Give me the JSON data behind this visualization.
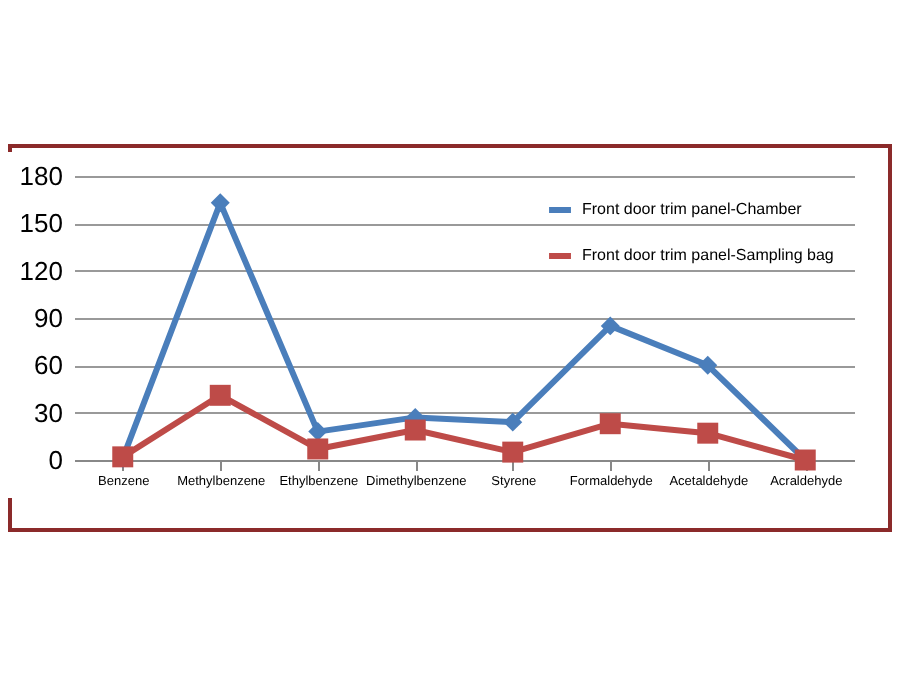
{
  "chart_data": {
    "type": "line",
    "categories": [
      "Benzene",
      "Methylbenzene",
      "Ethylbenzene",
      "Dimethylbenzene",
      "Styrene",
      "Formaldehyde",
      "Acetaldehyde",
      "Acraldehyde"
    ],
    "series": [
      {
        "name": "Front door trim panel-Chamber",
        "color": "#4a7ebb",
        "marker": "diamond",
        "values": [
          1,
          163,
          18,
          27,
          24,
          85,
          60,
          0
        ]
      },
      {
        "name": "Front door trim panel-Sampling bag",
        "color": "#be4b48",
        "marker": "square",
        "values": [
          2,
          41,
          7,
          19,
          5,
          23,
          17,
          0
        ]
      }
    ],
    "ylim": [
      0,
      180
    ],
    "yticks": [
      0,
      30,
      60,
      90,
      120,
      150,
      180
    ],
    "grid": "y",
    "legend": "top right",
    "line_style": "solid"
  }
}
